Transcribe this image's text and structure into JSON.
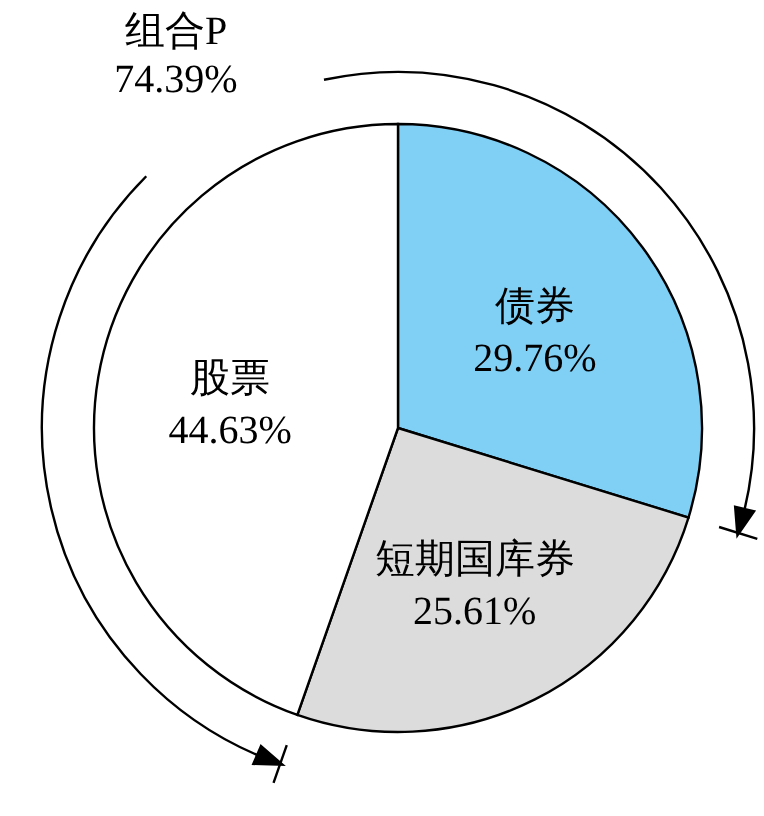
{
  "chart_data": {
    "type": "pie",
    "categories": [
      "债券",
      "短期国库券",
      "股票"
    ],
    "values": [
      29.76,
      25.61,
      44.63
    ],
    "colors": [
      "#80cff5",
      "#dcdcdc",
      "#ffffff"
    ],
    "value_labels": [
      "29.76%",
      "25.61%",
      "44.63%"
    ],
    "annotations": [
      "组合P",
      "74.39%"
    ]
  }
}
